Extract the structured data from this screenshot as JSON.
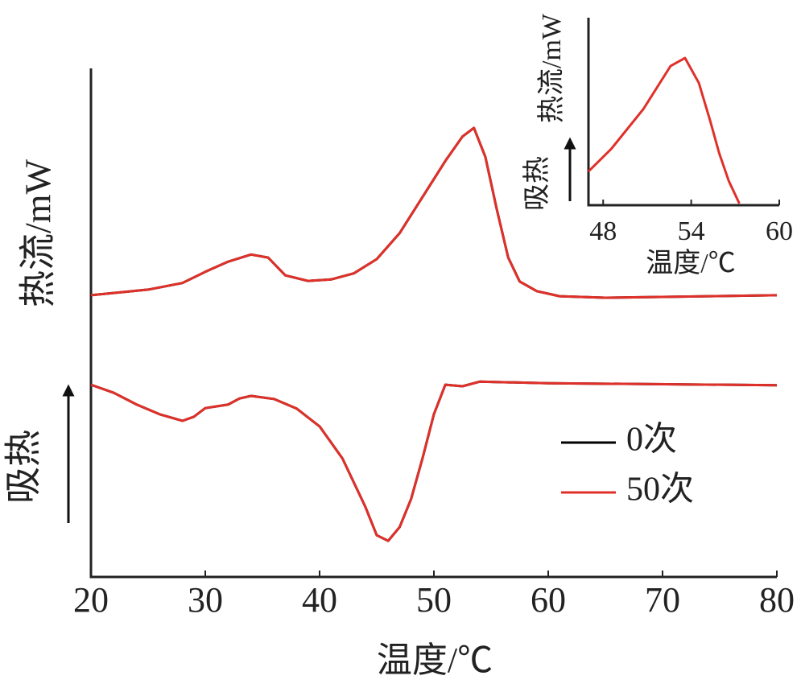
{
  "chart_data": [
    {
      "type": "line",
      "xlabel": "温度/℃",
      "ylabel": "热流/mW",
      "annotation": "吸热",
      "xlim": [
        20,
        80
      ],
      "xticks": [
        20,
        30,
        40,
        50,
        60,
        70,
        80
      ],
      "ylim": [
        0,
        100
      ],
      "x_upper": [
        20,
        25,
        28,
        30,
        32,
        34,
        35.5,
        37,
        39,
        41,
        43,
        45,
        47,
        49,
        51,
        52.5,
        53.5,
        54.5,
        55.5,
        56.5,
        57.5,
        59,
        61,
        65,
        80
      ],
      "x_lower": [
        20,
        22,
        24,
        26,
        28,
        29,
        30,
        32,
        33,
        34,
        36,
        38,
        40,
        42,
        44,
        45,
        46,
        47,
        48,
        49,
        50,
        51,
        52.5,
        54,
        60,
        80
      ],
      "series": [
        {
          "name": "0次",
          "color": "#000000",
          "upper": [
            55.4,
            56.5,
            57.8,
            60.0,
            62.0,
            63.4,
            62.8,
            59.3,
            58.2,
            58.5,
            59.7,
            62.5,
            67.6,
            74.7,
            81.8,
            86.6,
            88.3,
            82.6,
            72.3,
            62.8,
            58.1,
            56.2,
            55.2,
            54.9,
            55.4
          ],
          "lower": [
            37.8,
            36.2,
            33.9,
            32.0,
            30.7,
            31.5,
            33.2,
            33.9,
            35.1,
            35.6,
            35.0,
            33.1,
            29.6,
            23.3,
            13.8,
            8.2,
            7.1,
            9.8,
            15.3,
            23.3,
            32.0,
            37.8,
            37.5,
            38.4,
            38.1,
            37.7
          ]
        },
        {
          "name": "50次",
          "color": "#e0302a",
          "upper": [
            55.4,
            56.5,
            57.8,
            60.0,
            62.0,
            63.4,
            62.8,
            59.3,
            58.2,
            58.5,
            59.7,
            62.5,
            67.6,
            74.7,
            81.8,
            86.6,
            88.3,
            82.6,
            72.3,
            62.8,
            58.1,
            56.2,
            55.2,
            54.9,
            55.4
          ],
          "lower": [
            37.8,
            36.2,
            33.9,
            32.0,
            30.7,
            31.5,
            33.2,
            33.9,
            35.1,
            35.6,
            35.0,
            33.1,
            29.6,
            23.3,
            13.8,
            8.2,
            7.1,
            9.8,
            15.3,
            23.3,
            32.0,
            37.8,
            37.5,
            38.4,
            38.1,
            37.7
          ]
        }
      ]
    },
    {
      "type": "line",
      "xlabel": "温度/℃",
      "ylabel": "热流/mW",
      "annotation": "吸热",
      "xlim": [
        47,
        60
      ],
      "xticks": [
        48,
        54,
        60
      ],
      "ylim": [
        0,
        100
      ],
      "x": [
        47.0,
        48.55,
        50.76,
        52.59,
        53.58,
        54.52,
        55.29,
        55.9,
        56.56,
        57.28
      ],
      "series": [
        {
          "name": "50次",
          "color": "#e0302a",
          "values": [
            18.0,
            30.0,
            51.5,
            74.2,
            78.5,
            65.2,
            45.1,
            27.9,
            12.9,
            0.9
          ]
        }
      ]
    }
  ]
}
